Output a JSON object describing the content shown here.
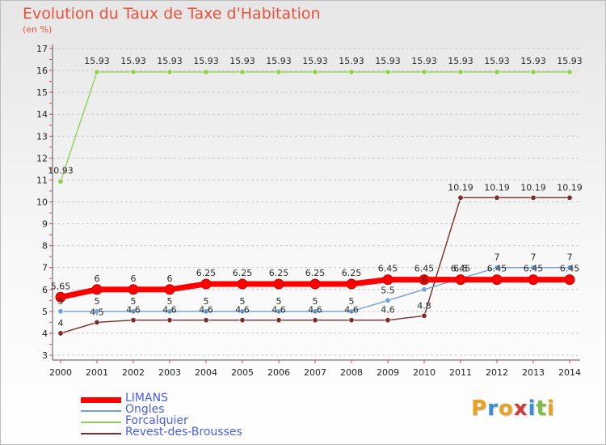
{
  "chart_data": {
    "type": "line",
    "title": "Evolution du Taux de Taxe d'Habitation",
    "subtitle": "(en %)",
    "categories": [
      "2000",
      "2001",
      "2002",
      "2003",
      "2004",
      "2005",
      "2006",
      "2007",
      "2008",
      "2009",
      "2010",
      "2011",
      "2012",
      "2013",
      "2014"
    ],
    "ylim": [
      3,
      17
    ],
    "yticks": [
      "3",
      "4",
      "5",
      "6",
      "7",
      "8",
      "9",
      "10",
      "11",
      "12",
      "13",
      "14",
      "15",
      "16",
      "17"
    ],
    "grid": "dashed-horizontal",
    "legend_position": "bottom-left",
    "series": [
      {
        "name": "Forcalquier",
        "color": "#8fd14f",
        "values": [
          10.93,
          15.93,
          15.93,
          15.93,
          15.93,
          15.93,
          15.93,
          15.93,
          15.93,
          15.93,
          15.93,
          15.93,
          15.93,
          15.93,
          15.93
        ],
        "labels": [
          "10.93",
          "15.93",
          "15.93",
          "15.93",
          "15.93",
          "15.93",
          "15.93",
          "15.93",
          "15.93",
          "15.93",
          "15.93",
          "15.93",
          "15.93",
          "15.93",
          "15.93"
        ]
      },
      {
        "name": "Revest-des-Brousses",
        "color": "#7b2c2c",
        "values": [
          4,
          4.5,
          4.6,
          4.6,
          4.6,
          4.6,
          4.6,
          4.6,
          4.6,
          4.6,
          4.8,
          10.19,
          10.19,
          10.19,
          10.19
        ],
        "labels": [
          "4",
          "4.5",
          "4.6",
          "4.6",
          "4.6",
          "4.6",
          "4.6",
          "4.6",
          "4.6",
          "4.6",
          "4.8",
          "10.19",
          "10.19",
          "10.19",
          "10.19"
        ]
      },
      {
        "name": "Ongles",
        "color": "#6fa3d4",
        "values": [
          5,
          5,
          5,
          5,
          5,
          5,
          5,
          5,
          5,
          5.5,
          6,
          6.5,
          7,
          7,
          7
        ],
        "labels": [
          "5",
          "5",
          "5",
          "5",
          "5",
          "5",
          "5",
          "5",
          "5",
          "5.5",
          "6",
          "6.5",
          "7",
          "7",
          "7"
        ]
      },
      {
        "name": "LIMANS",
        "color": "#ff0000",
        "values": [
          5.65,
          6,
          6,
          6,
          6.25,
          6.25,
          6.25,
          6.25,
          6.25,
          6.45,
          6.45,
          6.45,
          6.45,
          6.45,
          6.45
        ],
        "labels": [
          "5.65",
          "6",
          "6",
          "6",
          "6.25",
          "6.25",
          "6.25",
          "6.25",
          "6.25",
          "6.45",
          "6.45",
          "6.45",
          "6.45",
          "6.45",
          "6.45"
        ]
      }
    ]
  },
  "legend": {
    "items": [
      {
        "name": "LIMANS",
        "color": "#ff0000"
      },
      {
        "name": "Ongles",
        "color": "#6fa3d4"
      },
      {
        "name": "Forcalquier",
        "color": "#8fd14f"
      },
      {
        "name": "Revest-des-Brousses",
        "color": "#7b2c2c"
      }
    ]
  },
  "logo": {
    "letters": [
      "P",
      "r",
      "o",
      "x",
      "i",
      "t",
      "i"
    ],
    "colors": [
      "#e8a21f",
      "#3b8fd6",
      "#e8a21f",
      "#d43b3b",
      "#3b8fd6",
      "#7bc043",
      "#e8a21f"
    ]
  }
}
